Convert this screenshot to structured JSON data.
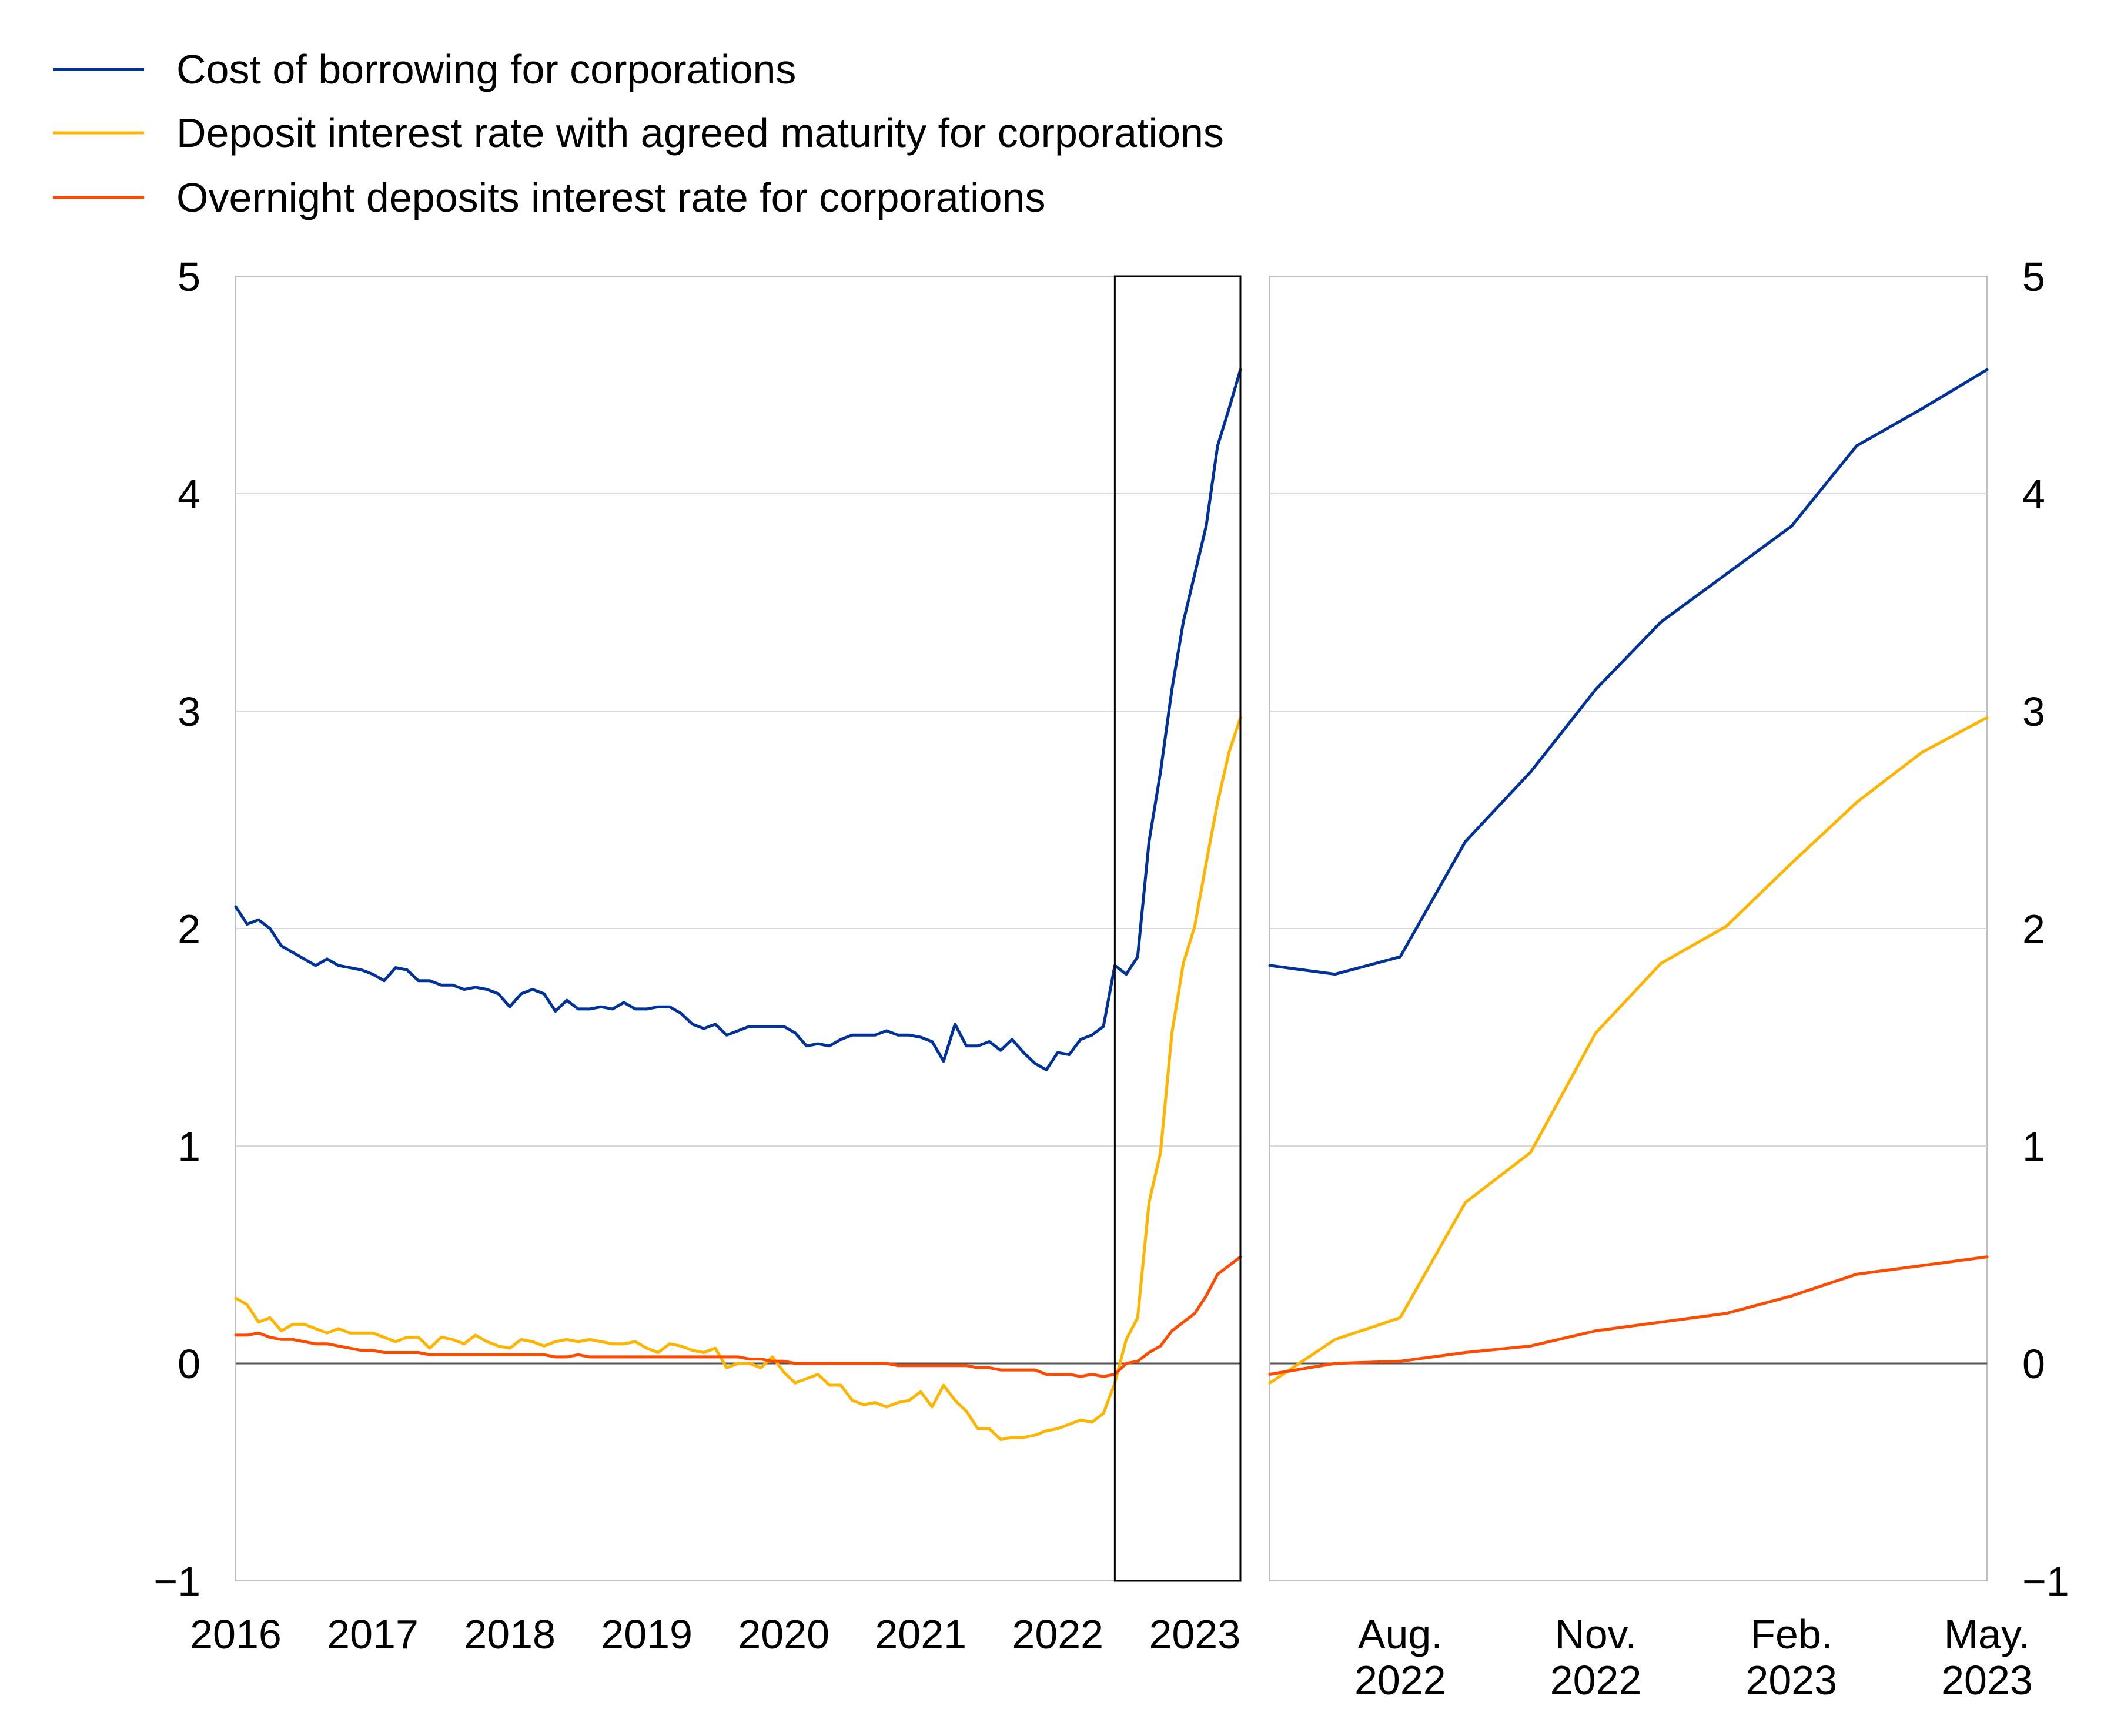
{
  "legend": [
    {
      "label": "Cost of borrowing for corporations",
      "color": "#003299"
    },
    {
      "label": "Deposit interest rate with agreed maturity for corporations",
      "color": "#FFB400"
    },
    {
      "label": "Overnight deposits interest rate for corporations",
      "color": "#FF4B00"
    }
  ],
  "chart_data": [
    {
      "type": "line",
      "panel": "left",
      "ylim": [
        -1,
        5
      ],
      "yticks": [
        "5",
        "4",
        "3",
        "2",
        "1",
        "0",
        "−1"
      ],
      "xlim": [
        "2016-01",
        "2023-05"
      ],
      "xtick_labels": [
        "2016",
        "2017",
        "2018",
        "2019",
        "2020",
        "2021",
        "2022",
        "2023"
      ],
      "highlight_box": {
        "from": "2022-06",
        "to": "2023-05"
      },
      "grid": true,
      "series": [
        {
          "name": "Cost of borrowing for corporations",
          "color": "#003299",
          "x": [
            "2016-01",
            "2016-02",
            "2016-03",
            "2016-04",
            "2016-05",
            "2016-06",
            "2016-07",
            "2016-08",
            "2016-09",
            "2016-10",
            "2016-11",
            "2016-12",
            "2017-01",
            "2017-02",
            "2017-03",
            "2017-04",
            "2017-05",
            "2017-06",
            "2017-07",
            "2017-08",
            "2017-09",
            "2017-10",
            "2017-11",
            "2017-12",
            "2018-01",
            "2018-02",
            "2018-03",
            "2018-04",
            "2018-05",
            "2018-06",
            "2018-07",
            "2018-08",
            "2018-09",
            "2018-10",
            "2018-11",
            "2018-12",
            "2019-01",
            "2019-02",
            "2019-03",
            "2019-04",
            "2019-05",
            "2019-06",
            "2019-07",
            "2019-08",
            "2019-09",
            "2019-10",
            "2019-11",
            "2019-12",
            "2020-01",
            "2020-02",
            "2020-03",
            "2020-04",
            "2020-05",
            "2020-06",
            "2020-07",
            "2020-08",
            "2020-09",
            "2020-10",
            "2020-11",
            "2020-12",
            "2021-01",
            "2021-02",
            "2021-03",
            "2021-04",
            "2021-05",
            "2021-06",
            "2021-07",
            "2021-08",
            "2021-09",
            "2021-10",
            "2021-11",
            "2021-12",
            "2022-01",
            "2022-02",
            "2022-03",
            "2022-04",
            "2022-05",
            "2022-06",
            "2022-07",
            "2022-08",
            "2022-09",
            "2022-10",
            "2022-11",
            "2022-12",
            "2023-01",
            "2023-02",
            "2023-03",
            "2023-04",
            "2023-05"
          ],
          "values": [
            2.1,
            2.02,
            2.04,
            2.0,
            1.92,
            1.89,
            1.86,
            1.83,
            1.86,
            1.83,
            1.82,
            1.81,
            1.79,
            1.76,
            1.82,
            1.81,
            1.76,
            1.76,
            1.74,
            1.74,
            1.72,
            1.73,
            1.72,
            1.7,
            1.64,
            1.7,
            1.72,
            1.7,
            1.62,
            1.67,
            1.63,
            1.63,
            1.64,
            1.63,
            1.66,
            1.63,
            1.63,
            1.64,
            1.64,
            1.61,
            1.56,
            1.54,
            1.56,
            1.51,
            1.53,
            1.55,
            1.55,
            1.55,
            1.55,
            1.52,
            1.46,
            1.47,
            1.46,
            1.49,
            1.51,
            1.51,
            1.51,
            1.53,
            1.51,
            1.51,
            1.5,
            1.48,
            1.39,
            1.56,
            1.46,
            1.46,
            1.48,
            1.44,
            1.49,
            1.43,
            1.38,
            1.35,
            1.43,
            1.42,
            1.49,
            1.51,
            1.55,
            1.83,
            1.79,
            1.87,
            2.4,
            2.72,
            3.1,
            3.41,
            3.63,
            3.85,
            4.22,
            4.39,
            4.57
          ]
        },
        {
          "name": "Deposit interest rate with agreed maturity for corporations",
          "color": "#FFB400",
          "x": [
            "2016-01",
            "2016-02",
            "2016-03",
            "2016-04",
            "2016-05",
            "2016-06",
            "2016-07",
            "2016-08",
            "2016-09",
            "2016-10",
            "2016-11",
            "2016-12",
            "2017-01",
            "2017-02",
            "2017-03",
            "2017-04",
            "2017-05",
            "2017-06",
            "2017-07",
            "2017-08",
            "2017-09",
            "2017-10",
            "2017-11",
            "2017-12",
            "2018-01",
            "2018-02",
            "2018-03",
            "2018-04",
            "2018-05",
            "2018-06",
            "2018-07",
            "2018-08",
            "2018-09",
            "2018-10",
            "2018-11",
            "2018-12",
            "2019-01",
            "2019-02",
            "2019-03",
            "2019-04",
            "2019-05",
            "2019-06",
            "2019-07",
            "2019-08",
            "2019-09",
            "2019-10",
            "2019-11",
            "2019-12",
            "2020-01",
            "2020-02",
            "2020-03",
            "2020-04",
            "2020-05",
            "2020-06",
            "2020-07",
            "2020-08",
            "2020-09",
            "2020-10",
            "2020-11",
            "2020-12",
            "2021-01",
            "2021-02",
            "2021-03",
            "2021-04",
            "2021-05",
            "2021-06",
            "2021-07",
            "2021-08",
            "2021-09",
            "2021-10",
            "2021-11",
            "2021-12",
            "2022-01",
            "2022-02",
            "2022-03",
            "2022-04",
            "2022-05",
            "2022-06",
            "2022-07",
            "2022-08",
            "2022-09",
            "2022-10",
            "2022-11",
            "2022-12",
            "2023-01",
            "2023-02",
            "2023-03",
            "2023-04",
            "2023-05"
          ],
          "values": [
            0.3,
            0.27,
            0.19,
            0.21,
            0.15,
            0.18,
            0.18,
            0.16,
            0.14,
            0.16,
            0.14,
            0.14,
            0.14,
            0.12,
            0.1,
            0.12,
            0.12,
            0.07,
            0.12,
            0.11,
            0.09,
            0.13,
            0.1,
            0.08,
            0.07,
            0.11,
            0.1,
            0.08,
            0.1,
            0.11,
            0.1,
            0.11,
            0.1,
            0.09,
            0.09,
            0.1,
            0.07,
            0.05,
            0.09,
            0.08,
            0.06,
            0.05,
            0.07,
            -0.02,
            0.0,
            0.0,
            -0.02,
            0.03,
            -0.04,
            -0.09,
            -0.07,
            -0.05,
            -0.1,
            -0.1,
            -0.17,
            -0.19,
            -0.18,
            -0.2,
            -0.18,
            -0.17,
            -0.13,
            -0.2,
            -0.1,
            -0.17,
            -0.22,
            -0.3,
            -0.3,
            -0.35,
            -0.34,
            -0.34,
            -0.33,
            -0.31,
            -0.3,
            -0.28,
            -0.26,
            -0.27,
            -0.23,
            -0.09,
            0.11,
            0.21,
            0.74,
            0.97,
            1.52,
            1.84,
            2.01,
            2.3,
            2.58,
            2.81,
            2.97
          ]
        },
        {
          "name": "Overnight deposits interest rate for corporations",
          "color": "#FF4B00",
          "x": [
            "2016-01",
            "2016-02",
            "2016-03",
            "2016-04",
            "2016-05",
            "2016-06",
            "2016-07",
            "2016-08",
            "2016-09",
            "2016-10",
            "2016-11",
            "2016-12",
            "2017-01",
            "2017-02",
            "2017-03",
            "2017-04",
            "2017-05",
            "2017-06",
            "2017-07",
            "2017-08",
            "2017-09",
            "2017-10",
            "2017-11",
            "2017-12",
            "2018-01",
            "2018-02",
            "2018-03",
            "2018-04",
            "2018-05",
            "2018-06",
            "2018-07",
            "2018-08",
            "2018-09",
            "2018-10",
            "2018-11",
            "2018-12",
            "2019-01",
            "2019-02",
            "2019-03",
            "2019-04",
            "2019-05",
            "2019-06",
            "2019-07",
            "2019-08",
            "2019-09",
            "2019-10",
            "2019-11",
            "2019-12",
            "2020-01",
            "2020-02",
            "2020-03",
            "2020-04",
            "2020-05",
            "2020-06",
            "2020-07",
            "2020-08",
            "2020-09",
            "2020-10",
            "2020-11",
            "2020-12",
            "2021-01",
            "2021-02",
            "2021-03",
            "2021-04",
            "2021-05",
            "2021-06",
            "2021-07",
            "2021-08",
            "2021-09",
            "2021-10",
            "2021-11",
            "2021-12",
            "2022-01",
            "2022-02",
            "2022-03",
            "2022-04",
            "2022-05",
            "2022-06",
            "2022-07",
            "2022-08",
            "2022-09",
            "2022-10",
            "2022-11",
            "2022-12",
            "2023-01",
            "2023-02",
            "2023-03",
            "2023-04",
            "2023-05"
          ],
          "values": [
            0.13,
            0.13,
            0.14,
            0.12,
            0.11,
            0.11,
            0.1,
            0.09,
            0.09,
            0.08,
            0.07,
            0.06,
            0.06,
            0.05,
            0.05,
            0.05,
            0.05,
            0.04,
            0.04,
            0.04,
            0.04,
            0.04,
            0.04,
            0.04,
            0.04,
            0.04,
            0.04,
            0.04,
            0.03,
            0.03,
            0.04,
            0.03,
            0.03,
            0.03,
            0.03,
            0.03,
            0.03,
            0.03,
            0.03,
            0.03,
            0.03,
            0.03,
            0.03,
            0.03,
            0.03,
            0.02,
            0.02,
            0.01,
            0.01,
            0.0,
            0.0,
            0.0,
            0.0,
            0.0,
            0.0,
            0.0,
            0.0,
            0.0,
            -0.01,
            -0.01,
            -0.01,
            -0.01,
            -0.01,
            -0.01,
            -0.01,
            -0.02,
            -0.02,
            -0.03,
            -0.03,
            -0.03,
            -0.03,
            -0.05,
            -0.05,
            -0.05,
            -0.06,
            -0.05,
            -0.06,
            -0.05,
            0.0,
            0.01,
            0.05,
            0.08,
            0.15,
            0.19,
            0.23,
            0.31,
            0.41,
            0.45,
            0.49
          ]
        }
      ]
    },
    {
      "type": "line",
      "panel": "right",
      "ylim": [
        -1,
        5
      ],
      "yticks": [
        "5",
        "4",
        "3",
        "2",
        "1",
        "0",
        "−1"
      ],
      "xlim": [
        "2022-06",
        "2023-05"
      ],
      "xtick_labels": [
        [
          "Aug.",
          "2022"
        ],
        [
          "Nov.",
          "2022"
        ],
        [
          "Feb.",
          "2023"
        ],
        [
          "May.",
          "2023"
        ]
      ],
      "grid": true,
      "series": [
        {
          "name": "Cost of borrowing for corporations",
          "color": "#003299",
          "x": [
            "2022-06",
            "2022-07",
            "2022-08",
            "2022-09",
            "2022-10",
            "2022-11",
            "2022-12",
            "2023-01",
            "2023-02",
            "2023-03",
            "2023-04",
            "2023-05"
          ],
          "values": [
            1.83,
            1.79,
            1.87,
            2.4,
            2.72,
            3.1,
            3.41,
            3.63,
            3.85,
            4.22,
            4.39,
            4.57
          ]
        },
        {
          "name": "Deposit interest rate with agreed maturity for corporations",
          "color": "#FFB400",
          "x": [
            "2022-06",
            "2022-07",
            "2022-08",
            "2022-09",
            "2022-10",
            "2022-11",
            "2022-12",
            "2023-01",
            "2023-02",
            "2023-03",
            "2023-04",
            "2023-05"
          ],
          "values": [
            -0.09,
            0.11,
            0.21,
            0.74,
            0.97,
            1.52,
            1.84,
            2.01,
            2.3,
            2.58,
            2.81,
            2.97
          ]
        },
        {
          "name": "Overnight deposits interest rate for corporations",
          "color": "#FF4B00",
          "x": [
            "2022-06",
            "2022-07",
            "2022-08",
            "2022-09",
            "2022-10",
            "2022-11",
            "2022-12",
            "2023-01",
            "2023-02",
            "2023-03",
            "2023-04",
            "2023-05"
          ],
          "values": [
            -0.05,
            0.0,
            0.01,
            0.05,
            0.08,
            0.15,
            0.19,
            0.23,
            0.31,
            0.41,
            0.45,
            0.49
          ]
        }
      ]
    }
  ]
}
